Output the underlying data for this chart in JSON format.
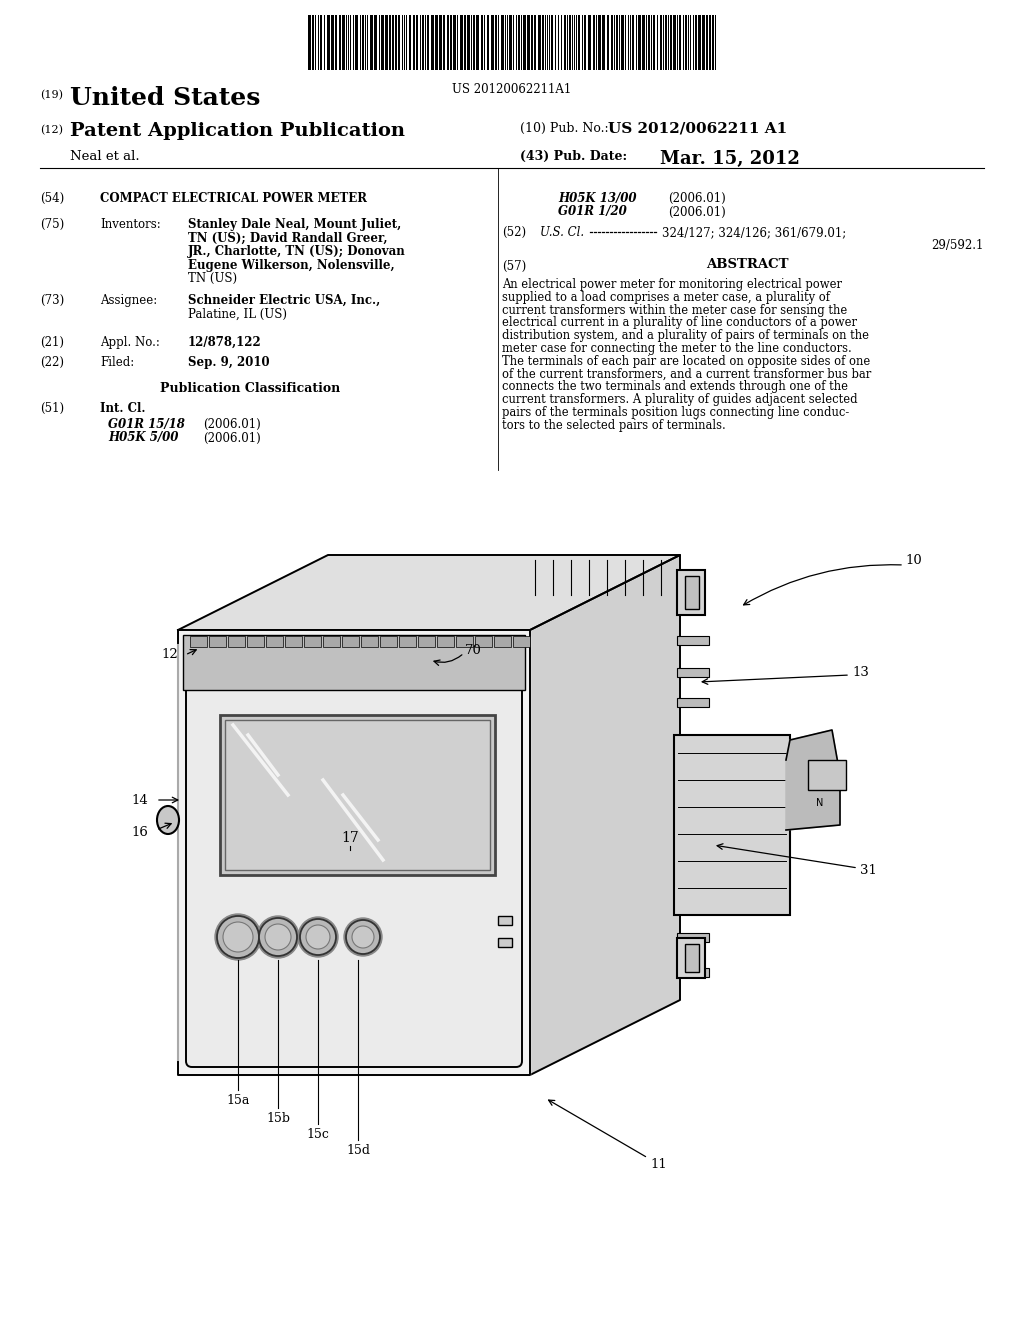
{
  "background_color": "#ffffff",
  "barcode_text": "US 20120062211A1",
  "country": "United States",
  "pub_type": "Patent Application Publication",
  "field_10_label": "(10) Pub. No.:",
  "field_10_value": "US 2012/0062211 A1",
  "field_43_label": "(43) Pub. Date:",
  "field_43_value": "Mar. 15, 2012",
  "inventors_label": "Neal et al.",
  "field_54_title": "COMPACT ELECTRICAL POWER METER",
  "field_ipc_right": [
    [
      "H05K 13/00",
      "(2006.01)"
    ],
    [
      "G01R 1/20",
      "(2006.01)"
    ]
  ],
  "field_51_classes": [
    [
      "G01R 15/18",
      "(2006.01)"
    ],
    [
      "H05K 5/00",
      "(2006.01)"
    ]
  ],
  "field_21_value": "12/878,122",
  "field_22_value": "Sep. 9, 2010",
  "pub_class_title": "Publication Classification",
  "field_57_title": "ABSTRACT",
  "abstract_lines": [
    "An electrical power meter for monitoring electrical power",
    "supplied to a load comprises a meter case, a plurality of",
    "current transformers within the meter case for sensing the",
    "electrical current in a plurality of line conductors of a power",
    "distribution system, and a plurality of pairs of terminals on the",
    "meter case for connecting the meter to the line conductors.",
    "The terminals of each pair are located on opposite sides of one",
    "of the current transformers, and a current transformer bus bar",
    "connects the two terminals and extends through one of the",
    "current transformers. A plurality of guides adjacent selected",
    "pairs of the terminals position lugs connecting line conduc-",
    "tors to the selected pairs of terminals."
  ]
}
